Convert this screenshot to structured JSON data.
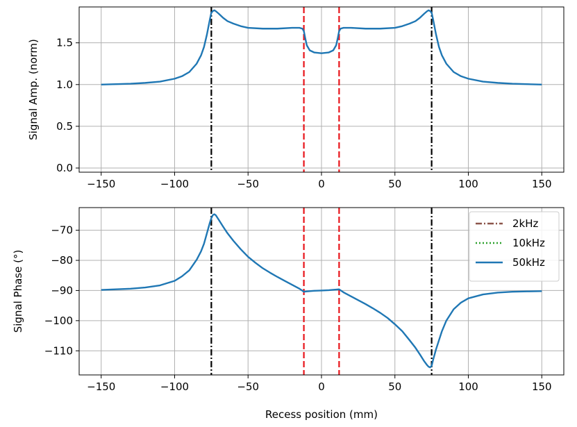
{
  "chart_data": [
    {
      "type": "line",
      "ylabel": "Signal Amp. (norm)",
      "xlabel": "",
      "xlim": [
        -165,
        165
      ],
      "ylim": [
        -0.05,
        1.93
      ],
      "xticks": [
        -150,
        -100,
        -50,
        0,
        50,
        100,
        150
      ],
      "xtick_labels": [
        "−150",
        "−100",
        "−50",
        "0",
        "50",
        "100",
        "150"
      ],
      "yticks": [
        0.0,
        0.5,
        1.0,
        1.5
      ],
      "ytick_labels": [
        "0.0",
        "0.5",
        "1.0",
        "1.5"
      ],
      "grid": true,
      "vlines": [
        {
          "x": -75,
          "color": "#000000",
          "style": "dashdot"
        },
        {
          "x": 75,
          "color": "#000000",
          "style": "dashdot"
        },
        {
          "x": -12,
          "color": "#e8141a",
          "style": "dashed"
        },
        {
          "x": 12,
          "color": "#e8141a",
          "style": "dashed"
        }
      ],
      "series": [
        {
          "name": "50kHz",
          "color": "#1f77b4",
          "x": [
            -150,
            -140,
            -130,
            -120,
            -110,
            -100,
            -95,
            -90,
            -85,
            -82,
            -80,
            -78,
            -76,
            -75,
            -74,
            -73,
            -72,
            -70,
            -67,
            -64,
            -60,
            -55,
            -50,
            -40,
            -30,
            -20,
            -15,
            -13,
            -12,
            -11,
            -10,
            -8,
            -5,
            0,
            5,
            8,
            10,
            11,
            12,
            13,
            15,
            20,
            30,
            40,
            50,
            55,
            60,
            64,
            67,
            70,
            72,
            73,
            74,
            75,
            76,
            78,
            80,
            82,
            85,
            90,
            95,
            100,
            110,
            120,
            130,
            140,
            150
          ],
          "y": [
            1.0,
            1.005,
            1.01,
            1.02,
            1.035,
            1.07,
            1.1,
            1.15,
            1.25,
            1.35,
            1.45,
            1.6,
            1.78,
            1.86,
            1.88,
            1.89,
            1.88,
            1.85,
            1.8,
            1.76,
            1.73,
            1.7,
            1.68,
            1.67,
            1.67,
            1.68,
            1.68,
            1.67,
            1.64,
            1.55,
            1.47,
            1.41,
            1.385,
            1.375,
            1.385,
            1.41,
            1.47,
            1.55,
            1.64,
            1.67,
            1.68,
            1.68,
            1.67,
            1.67,
            1.68,
            1.7,
            1.73,
            1.76,
            1.8,
            1.85,
            1.88,
            1.89,
            1.88,
            1.86,
            1.78,
            1.6,
            1.45,
            1.35,
            1.25,
            1.15,
            1.1,
            1.07,
            1.035,
            1.02,
            1.01,
            1.005,
            1.0
          ]
        }
      ]
    },
    {
      "type": "line",
      "ylabel": "Signal Phase (°)",
      "xlabel": "Recess position (mm)",
      "xlim": [
        -165,
        165
      ],
      "ylim": [
        -118,
        -62.5
      ],
      "xticks": [
        -150,
        -100,
        -50,
        0,
        50,
        100,
        150
      ],
      "xtick_labels": [
        "−150",
        "−100",
        "−50",
        "0",
        "50",
        "100",
        "150"
      ],
      "yticks": [
        -70,
        -80,
        -90,
        -100,
        -110
      ],
      "ytick_labels": [
        "−70",
        "−80",
        "−90",
        "−100",
        "−110"
      ],
      "grid": true,
      "legend_position": "top-right",
      "vlines": [
        {
          "x": -75,
          "color": "#000000",
          "style": "dashdot"
        },
        {
          "x": 75,
          "color": "#000000",
          "style": "dashdot"
        },
        {
          "x": -12,
          "color": "#e8141a",
          "style": "dashed"
        },
        {
          "x": 12,
          "color": "#e8141a",
          "style": "dashed"
        }
      ],
      "series": [
        {
          "name": "2kHz",
          "color": "#8c564b",
          "style": "dashdot",
          "x": [],
          "y": []
        },
        {
          "name": "10kHz",
          "color": "#2ca02c",
          "style": "dotted",
          "x": [],
          "y": []
        },
        {
          "name": "50kHz",
          "color": "#1f77b4",
          "style": "solid",
          "x": [
            -150,
            -140,
            -130,
            -120,
            -110,
            -100,
            -95,
            -90,
            -85,
            -82,
            -80,
            -78,
            -76,
            -75,
            -74,
            -73,
            -72,
            -70,
            -67,
            -64,
            -60,
            -55,
            -50,
            -45,
            -40,
            -35,
            -30,
            -25,
            -20,
            -15,
            -12,
            -10,
            -5,
            0,
            5,
            10,
            12,
            15,
            20,
            25,
            30,
            35,
            40,
            45,
            50,
            55,
            60,
            64,
            67,
            70,
            72,
            73,
            74,
            75,
            76,
            78,
            80,
            82,
            85,
            90,
            95,
            100,
            110,
            120,
            130,
            140,
            150
          ],
          "y": [
            -89.8,
            -89.6,
            -89.4,
            -89.0,
            -88.3,
            -86.8,
            -85.3,
            -83.3,
            -79.8,
            -77.0,
            -74.5,
            -71.0,
            -67.5,
            -66.0,
            -65.0,
            -64.7,
            -65.0,
            -66.5,
            -68.8,
            -71.0,
            -73.5,
            -76.3,
            -78.8,
            -80.8,
            -82.6,
            -84.1,
            -85.5,
            -86.8,
            -88.1,
            -89.4,
            -90.4,
            -90.3,
            -90.1,
            -90.0,
            -89.9,
            -89.7,
            -89.6,
            -90.6,
            -91.9,
            -93.2,
            -94.5,
            -95.9,
            -97.4,
            -99.1,
            -101.2,
            -103.5,
            -106.5,
            -109.0,
            -111.2,
            -113.5,
            -114.8,
            -115.3,
            -115.5,
            -115.0,
            -113.0,
            -109.5,
            -106.5,
            -103.5,
            -100.0,
            -96.2,
            -94.0,
            -92.6,
            -91.3,
            -90.7,
            -90.4,
            -90.3,
            -90.2
          ]
        }
      ]
    }
  ]
}
